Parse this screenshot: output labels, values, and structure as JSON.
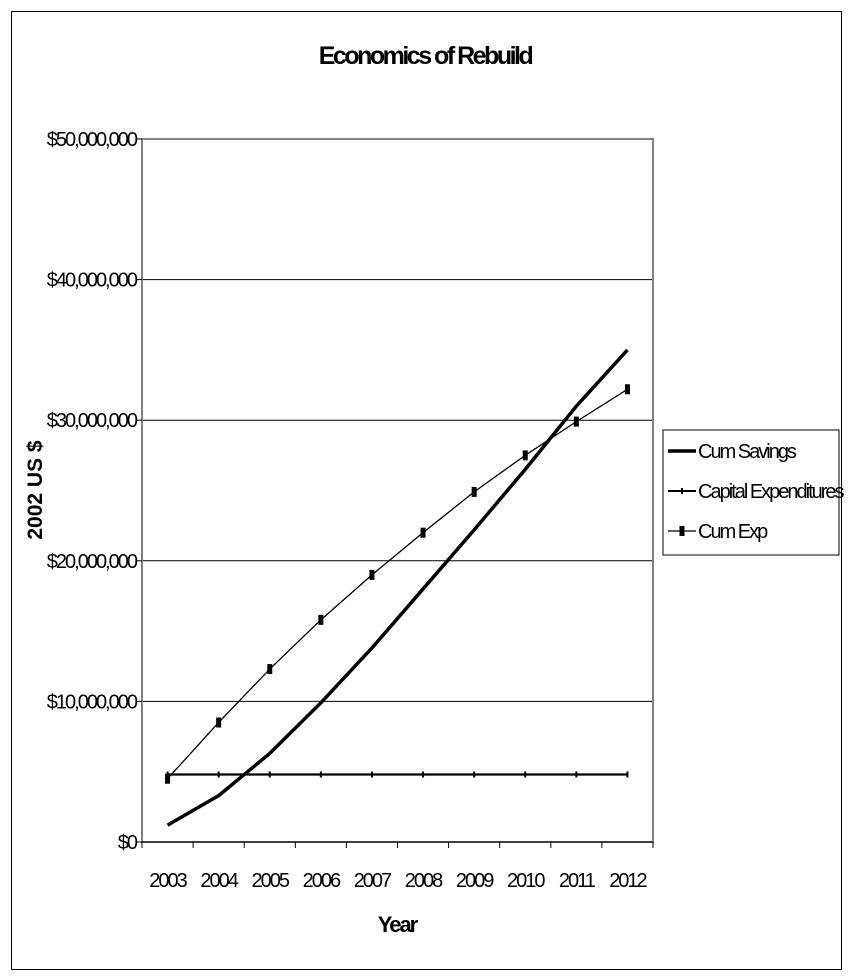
{
  "chart_data": {
    "type": "line",
    "title": "Economics of Rebuild",
    "xlabel": "Year",
    "ylabel": "2002 US $",
    "categories": [
      "2003",
      "2004",
      "2005",
      "2006",
      "2007",
      "2008",
      "2009",
      "2010",
      "2011",
      "2012"
    ],
    "ylim": [
      0,
      50000000
    ],
    "yticks": [
      0,
      10000000,
      20000000,
      30000000,
      40000000,
      50000000
    ],
    "ytick_labels": [
      "$0",
      "$10,000,000",
      "$20,000,000",
      "$30,000,000",
      "$40,000,000",
      "$50,000,000"
    ],
    "grid": "horizontal",
    "legend_position": "right",
    "series": [
      {
        "name": "Cum Savings",
        "values": [
          1200000,
          3300000,
          6300000,
          9900000,
          13800000,
          18000000,
          22200000,
          26500000,
          31000000,
          35000000
        ],
        "style": "thick",
        "color": "#000000"
      },
      {
        "name": "Capital Expenditures",
        "values": [
          4800000,
          4800000,
          4800000,
          4800000,
          4800000,
          4800000,
          4800000,
          4800000,
          4800000,
          4800000
        ],
        "style": "dash-marker",
        "color": "#000000"
      },
      {
        "name": "Cum Exp",
        "values": [
          4500000,
          8500000,
          12300000,
          15800000,
          19000000,
          22000000,
          24900000,
          27500000,
          29900000,
          32200000
        ],
        "style": "bar-marker",
        "color": "#000000"
      }
    ]
  }
}
